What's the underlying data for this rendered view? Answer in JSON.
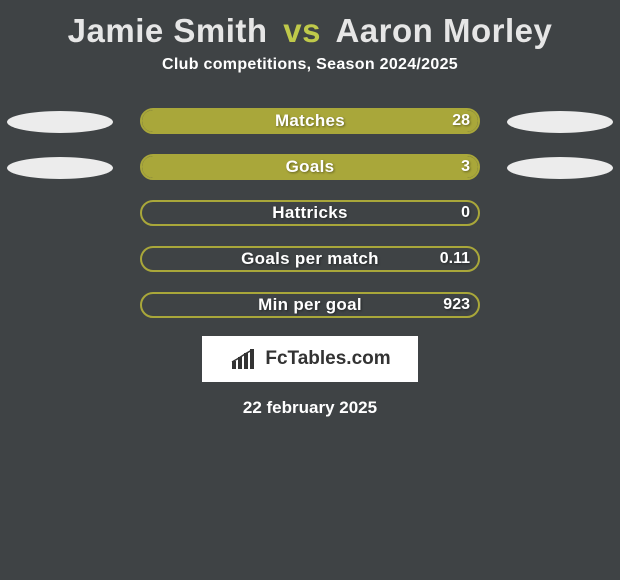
{
  "title": {
    "player1": "Jamie Smith",
    "vs": "vs",
    "player2": "Aaron Morley"
  },
  "subtitle": "Club competitions, Season 2024/2025",
  "accent_color": "#a9a73a",
  "bg_color": "#3f4345",
  "ellipse_color": "#ececec",
  "bars": [
    {
      "label": "Matches",
      "right_value": "28",
      "fill_pct": 100,
      "show_left_ellipse": true,
      "show_right_ellipse": true
    },
    {
      "label": "Goals",
      "right_value": "3",
      "fill_pct": 100,
      "show_left_ellipse": true,
      "show_right_ellipse": true
    },
    {
      "label": "Hattricks",
      "right_value": "0",
      "fill_pct": 0,
      "show_left_ellipse": false,
      "show_right_ellipse": false
    },
    {
      "label": "Goals per match",
      "right_value": "0.11",
      "fill_pct": 0,
      "show_left_ellipse": false,
      "show_right_ellipse": false
    },
    {
      "label": "Min per goal",
      "right_value": "923",
      "fill_pct": 0,
      "show_left_ellipse": false,
      "show_right_ellipse": false
    }
  ],
  "brand": "FcTables.com",
  "date": "22 february 2025"
}
